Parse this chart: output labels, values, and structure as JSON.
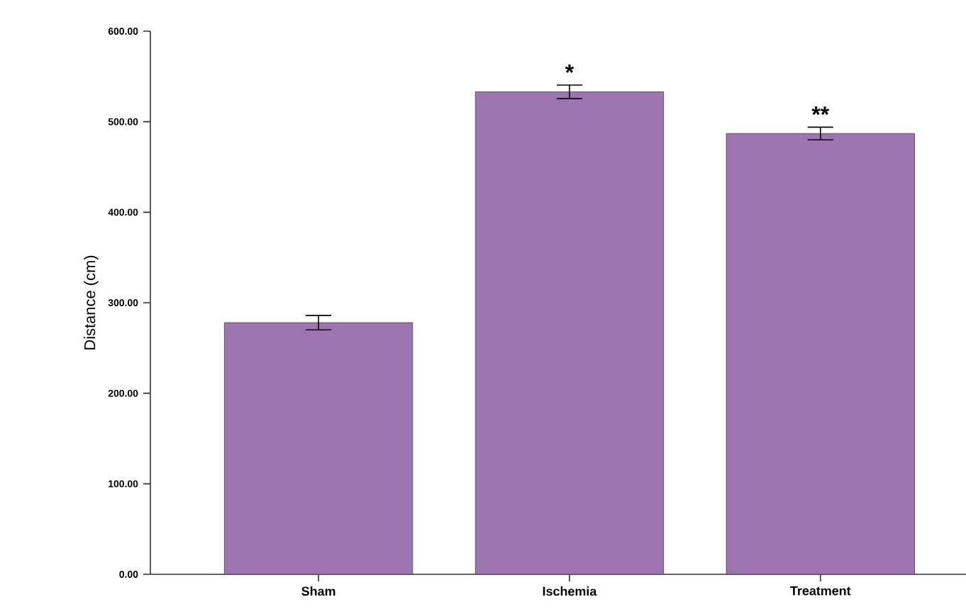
{
  "chart_data": {
    "type": "bar",
    "ylabel": "Distance (cm)",
    "categories": [
      "Sham",
      "Ischemia",
      "Treatment"
    ],
    "values": [
      278,
      533,
      487
    ],
    "errors": [
      8,
      7.5,
      7
    ],
    "color": "#9b74b0",
    "ylim": [
      0,
      600
    ],
    "yticks": [
      {
        "value": 0,
        "label": "0.00"
      },
      {
        "value": 100,
        "label": "100.00"
      },
      {
        "value": 200,
        "label": "200.00"
      },
      {
        "value": 300,
        "label": "300.00"
      },
      {
        "value": 400,
        "label": "400.00"
      },
      {
        "value": 500,
        "label": "500.00"
      },
      {
        "value": 600,
        "label": "600.00"
      }
    ],
    "annotations": [
      "*",
      "**"
    ],
    "grid": false
  }
}
